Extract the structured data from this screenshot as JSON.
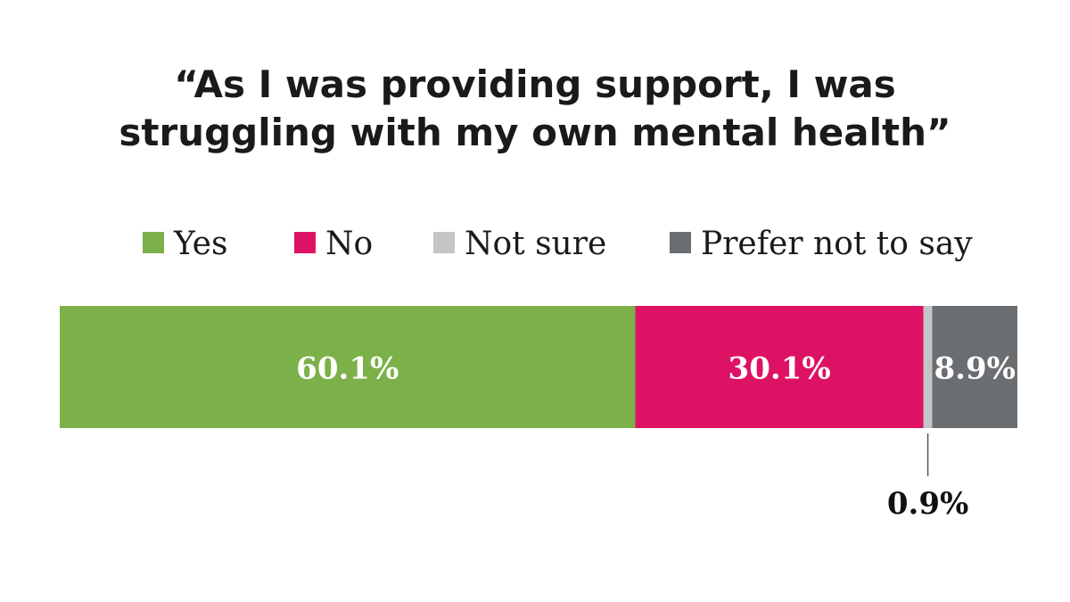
{
  "chart_data": {
    "type": "bar",
    "orientation": "horizontal-stacked-100",
    "title_lines": [
      "“As I was providing support, I was",
      "struggling with my own mental health”"
    ],
    "legend_placement": "top",
    "grid": false,
    "series": [
      {
        "name": "Yes",
        "value": 60.1,
        "label": "60.1%",
        "color": "#7cb048"
      },
      {
        "name": "No",
        "value": 30.1,
        "label": "30.1%",
        "color": "#de1264"
      },
      {
        "name": "Not sure",
        "value": 0.9,
        "label": "0.9%",
        "color": "#c4c5c7"
      },
      {
        "name": "Prefer not to say",
        "value": 8.9,
        "label": "8.9%",
        "color": "#6b6e71"
      }
    ]
  }
}
